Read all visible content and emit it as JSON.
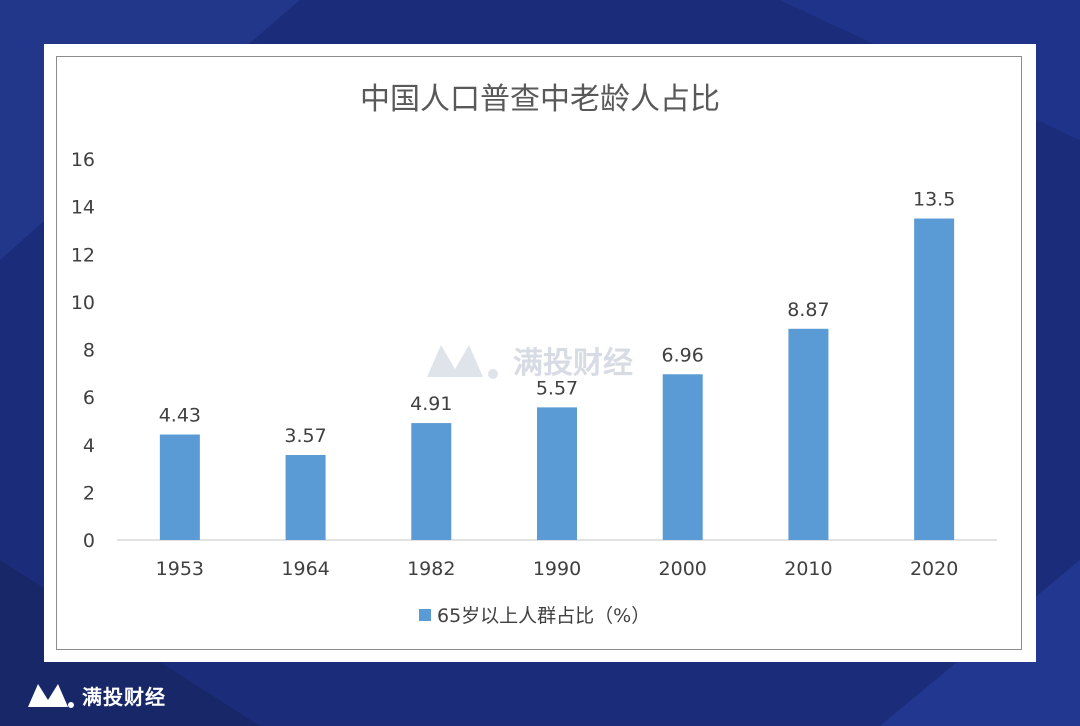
{
  "brand": {
    "name": "满投财经",
    "logo_icon": "mountain-logo-icon"
  },
  "watermark": {
    "text": "满投财经"
  },
  "colors": {
    "background": "#1b2d7a",
    "bar": "#5b9bd5",
    "card": "#ffffff"
  },
  "chart_data": {
    "type": "bar",
    "title": "中国人口普查中老龄人占比",
    "categories": [
      "1953",
      "1964",
      "1982",
      "1990",
      "2000",
      "2010",
      "2020"
    ],
    "series": [
      {
        "name": "65岁以上人群占比（%）",
        "values": [
          4.43,
          3.57,
          4.91,
          5.57,
          6.96,
          8.87,
          13.5
        ]
      }
    ],
    "data_labels": [
      "4.43",
      "3.57",
      "4.91",
      "5.57",
      "6.96",
      "8.87",
      "13.5"
    ],
    "y_ticks": [
      "0",
      "2",
      "4",
      "6",
      "8",
      "10",
      "12",
      "14",
      "16"
    ],
    "ylim": [
      0,
      16
    ],
    "grid": false,
    "legend_position": "bottom"
  }
}
